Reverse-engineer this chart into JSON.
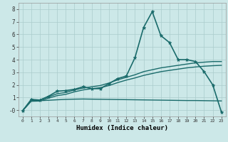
{
  "xlabel": "Humidex (Indice chaleur)",
  "background_color": "#cce8e8",
  "grid_color": "#aacccc",
  "line_color": "#1a6b6b",
  "xlim": [
    -0.5,
    23.5
  ],
  "ylim": [
    -0.5,
    8.5
  ],
  "xticks": [
    0,
    1,
    2,
    3,
    4,
    5,
    6,
    7,
    8,
    9,
    10,
    11,
    12,
    13,
    14,
    15,
    16,
    17,
    18,
    19,
    20,
    21,
    22,
    23
  ],
  "yticks": [
    0,
    1,
    2,
    3,
    4,
    5,
    6,
    7,
    8
  ],
  "ytick_labels": [
    "-0",
    "1",
    "2",
    "3",
    "4",
    "5",
    "6",
    "7",
    "8"
  ],
  "series": [
    {
      "x": [
        0,
        1,
        2,
        3,
        4,
        5,
        6,
        7,
        8,
        9,
        10,
        11,
        12,
        13,
        14,
        15,
        16,
        17,
        18,
        19,
        20,
        21,
        22,
        23
      ],
      "y": [
        -0.05,
        0.85,
        0.8,
        1.1,
        1.5,
        1.55,
        1.65,
        1.85,
        1.7,
        1.7,
        2.1,
        2.5,
        2.7,
        4.15,
        6.55,
        7.8,
        5.9,
        5.35,
        4.0,
        4.0,
        3.85,
        3.05,
        2.0,
        -0.15
      ],
      "marker": true,
      "linewidth": 1.2
    },
    {
      "x": [
        0,
        1,
        2,
        3,
        4,
        5,
        6,
        7,
        8,
        9,
        10,
        11,
        12,
        13,
        14,
        15,
        16,
        17,
        18,
        19,
        20,
        21,
        22,
        23
      ],
      "y": [
        -0.05,
        0.75,
        0.8,
        1.05,
        1.3,
        1.4,
        1.6,
        1.75,
        1.85,
        1.95,
        2.15,
        2.4,
        2.6,
        2.8,
        3.05,
        3.2,
        3.35,
        3.45,
        3.55,
        3.65,
        3.75,
        3.8,
        3.85,
        3.85
      ],
      "marker": false,
      "linewidth": 1.0
    },
    {
      "x": [
        0,
        1,
        2,
        3,
        4,
        5,
        6,
        7,
        8,
        9,
        10,
        11,
        12,
        13,
        14,
        15,
        16,
        17,
        18,
        19,
        20,
        21,
        22,
        23
      ],
      "y": [
        -0.05,
        0.7,
        0.72,
        0.95,
        1.15,
        1.25,
        1.45,
        1.6,
        1.7,
        1.78,
        1.95,
        2.18,
        2.38,
        2.55,
        2.75,
        2.9,
        3.05,
        3.15,
        3.25,
        3.35,
        3.42,
        3.48,
        3.52,
        3.55
      ],
      "marker": false,
      "linewidth": 1.0
    },
    {
      "x": [
        0,
        1,
        2,
        3,
        4,
        5,
        6,
        7,
        8,
        9,
        10,
        11,
        12,
        13,
        14,
        15,
        16,
        17,
        18,
        19,
        20,
        21,
        22,
        23
      ],
      "y": [
        -0.05,
        0.75,
        0.75,
        0.78,
        0.82,
        0.85,
        0.87,
        0.88,
        0.87,
        0.86,
        0.85,
        0.84,
        0.83,
        0.82,
        0.81,
        0.8,
        0.79,
        0.78,
        0.77,
        0.76,
        0.76,
        0.75,
        0.74,
        0.73
      ],
      "marker": false,
      "linewidth": 1.0
    }
  ]
}
